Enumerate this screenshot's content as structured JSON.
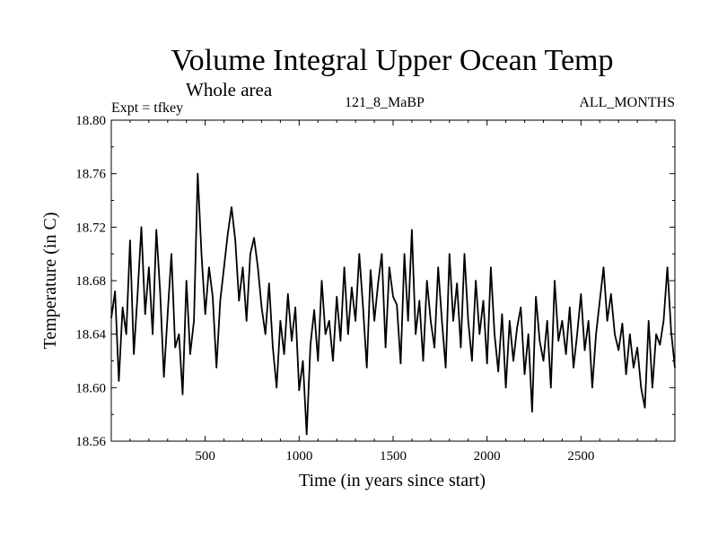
{
  "header": {
    "title": "Volume Integral Upper Ocean Temp",
    "subtitle": "Whole area",
    "expt": "Expt = tfkey",
    "run_id": "121_8_MaBP",
    "months": "ALL_MONTHS"
  },
  "chart_data": {
    "type": "line",
    "title": "Volume Integral Upper Ocean Temp",
    "subtitle": "Whole area",
    "xlabel": "Time (in years since start)",
    "ylabel": "Temperature (in C)",
    "xlim": [
      0,
      3000
    ],
    "ylim": [
      18.56,
      18.8
    ],
    "x_ticks": [
      500,
      1000,
      1500,
      2000,
      2500
    ],
    "x_tick_labels": [
      "500",
      "1000",
      "1500",
      "2000",
      "2500"
    ],
    "y_ticks": [
      18.56,
      18.6,
      18.64,
      18.68,
      18.72,
      18.76,
      18.8
    ],
    "y_tick_labels": [
      "18.56",
      "18.60",
      "18.64",
      "18.68",
      "18.72",
      "18.76",
      "18.80"
    ],
    "grid": false,
    "series": [
      {
        "color": "#000000",
        "x": [
          0,
          20,
          40,
          60,
          80,
          100,
          120,
          140,
          160,
          180,
          200,
          220,
          240,
          260,
          280,
          300,
          320,
          340,
          360,
          380,
          400,
          420,
          440,
          460,
          480,
          500,
          520,
          540,
          560,
          580,
          600,
          620,
          640,
          660,
          680,
          700,
          720,
          740,
          760,
          780,
          800,
          820,
          840,
          860,
          880,
          900,
          920,
          940,
          960,
          980,
          1000,
          1020,
          1040,
          1060,
          1080,
          1100,
          1120,
          1140,
          1160,
          1180,
          1200,
          1220,
          1240,
          1260,
          1280,
          1300,
          1320,
          1340,
          1360,
          1380,
          1400,
          1420,
          1440,
          1460,
          1480,
          1500,
          1520,
          1540,
          1560,
          1580,
          1600,
          1620,
          1640,
          1660,
          1680,
          1700,
          1720,
          1740,
          1760,
          1780,
          1800,
          1820,
          1840,
          1860,
          1880,
          1900,
          1920,
          1940,
          1960,
          1980,
          2000,
          2020,
          2040,
          2060,
          2080,
          2100,
          2120,
          2140,
          2160,
          2180,
          2200,
          2220,
          2240,
          2260,
          2280,
          2300,
          2320,
          2340,
          2360,
          2380,
          2400,
          2420,
          2440,
          2460,
          2480,
          2500,
          2520,
          2540,
          2560,
          2580,
          2600,
          2620,
          2640,
          2660,
          2680,
          2700,
          2720,
          2740,
          2760,
          2780,
          2800,
          2820,
          2840,
          2860,
          2880,
          2900,
          2920,
          2940,
          2960,
          2980,
          3000
        ],
        "values": [
          18.652,
          18.672,
          18.605,
          18.66,
          18.64,
          18.71,
          18.625,
          18.67,
          18.72,
          18.655,
          18.69,
          18.64,
          18.718,
          18.672,
          18.608,
          18.655,
          18.7,
          18.63,
          18.64,
          18.595,
          18.68,
          18.625,
          18.65,
          18.76,
          18.7,
          18.655,
          18.69,
          18.668,
          18.615,
          18.665,
          18.69,
          18.715,
          18.735,
          18.71,
          18.665,
          18.69,
          18.65,
          18.7,
          18.712,
          18.69,
          18.66,
          18.64,
          18.678,
          18.63,
          18.6,
          18.65,
          18.625,
          18.67,
          18.635,
          18.66,
          18.598,
          18.62,
          18.565,
          18.632,
          18.658,
          18.62,
          18.68,
          18.64,
          18.65,
          18.62,
          18.668,
          18.635,
          18.69,
          18.64,
          18.675,
          18.65,
          18.7,
          18.66,
          18.615,
          18.688,
          18.65,
          18.678,
          18.7,
          18.63,
          18.69,
          18.668,
          18.662,
          18.618,
          18.7,
          18.65,
          18.718,
          18.64,
          18.665,
          18.62,
          18.68,
          18.65,
          18.63,
          18.69,
          18.65,
          18.615,
          18.7,
          18.65,
          18.678,
          18.63,
          18.7,
          18.65,
          18.62,
          18.68,
          18.64,
          18.665,
          18.618,
          18.69,
          18.64,
          18.612,
          18.655,
          18.6,
          18.65,
          18.62,
          18.645,
          18.66,
          18.61,
          18.64,
          18.582,
          18.668,
          18.635,
          18.62,
          18.65,
          18.6,
          18.68,
          18.635,
          18.65,
          18.625,
          18.66,
          18.615,
          18.64,
          18.67,
          18.628,
          18.65,
          18.6,
          18.64,
          18.665,
          18.69,
          18.65,
          18.67,
          18.64,
          18.628,
          18.648,
          18.61,
          18.64,
          18.615,
          18.63,
          18.6,
          18.585,
          18.65,
          18.6,
          18.64,
          18.632,
          18.65,
          18.69,
          18.642,
          18.615
        ]
      }
    ]
  }
}
